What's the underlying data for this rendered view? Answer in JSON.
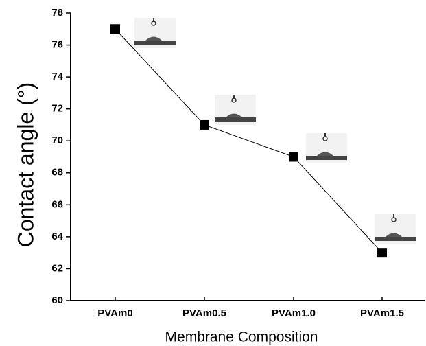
{
  "chart_data": {
    "type": "line",
    "x_label": "Membrane Composition",
    "y_label": "Contact angle (°)",
    "categories": [
      "PVAm0",
      "PVAm0.5",
      "PVAm1.0",
      "PVAm1.5"
    ],
    "values": [
      77,
      71,
      69,
      63
    ],
    "color": "#000000",
    "ylim": [
      60,
      78
    ],
    "yticks": [
      60,
      62,
      64,
      66,
      68,
      70,
      72,
      74,
      76,
      78
    ]
  }
}
